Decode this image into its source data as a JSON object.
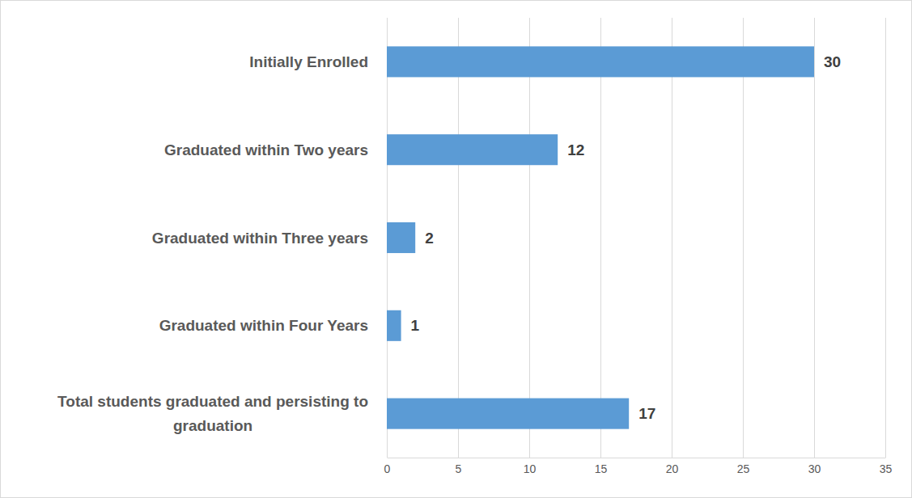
{
  "chart_data": {
    "type": "bar",
    "orientation": "horizontal",
    "categories": [
      "Initially Enrolled",
      "Graduated within Two years",
      "Graduated within Three years",
      "Graduated within Four Years",
      "Total students graduated and persisting to graduation"
    ],
    "values": [
      30,
      12,
      2,
      1,
      17
    ],
    "color": "#5b9bd5",
    "xlim": [
      0,
      35
    ],
    "xticks": [
      0,
      5,
      10,
      15,
      20,
      25,
      30,
      35
    ],
    "grid": true,
    "data_labels": true
  }
}
